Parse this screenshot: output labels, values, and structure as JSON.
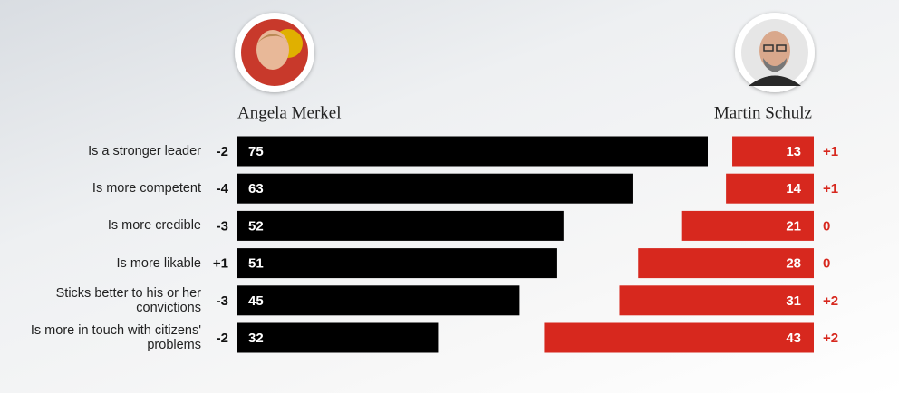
{
  "chart_data": {
    "type": "diverging-bar",
    "categories": [
      "Is a stronger leader",
      "Is more competent",
      "Is more credible",
      "Is more likable",
      "Sticks better to his or her convictions",
      "Is more in touch with citizens' problems"
    ],
    "series": [
      {
        "name": "Angela Merkel",
        "color": "#000000",
        "values": [
          75,
          63,
          52,
          51,
          45,
          32
        ],
        "change": [
          -2,
          -4,
          -3,
          1,
          -3,
          -2
        ],
        "change_labels": [
          "-2",
          "-4",
          "-3",
          "+1",
          "-3",
          "-2"
        ]
      },
      {
        "name": "Martin Schulz",
        "color": "#d7281e",
        "values": [
          13,
          14,
          21,
          28,
          31,
          43
        ],
        "change": [
          1,
          1,
          0,
          0,
          2,
          2
        ],
        "change_labels": [
          "+1",
          "+1",
          "0",
          "0",
          "+2",
          "+2"
        ]
      }
    ]
  }
}
